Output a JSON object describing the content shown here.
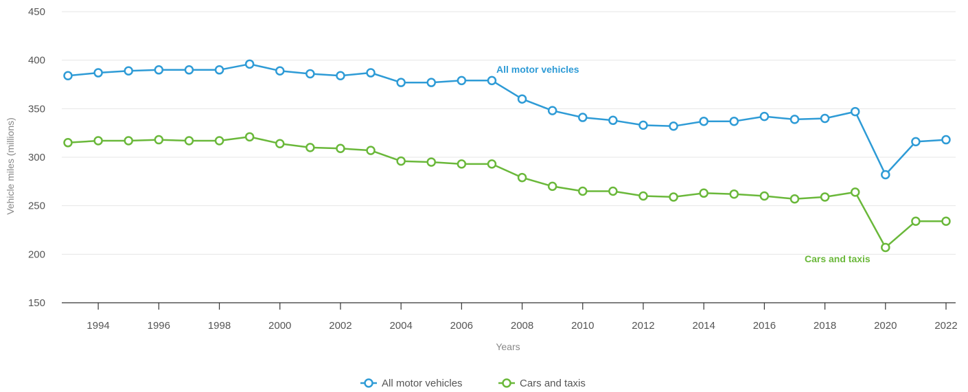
{
  "chart_data": {
    "type": "line",
    "xlabel": "Years",
    "ylabel": "Vehicle miles (millions)",
    "xlim": [
      1993,
      2022
    ],
    "ylim": [
      150,
      450
    ],
    "y_ticks": [
      150,
      200,
      250,
      300,
      350,
      400,
      450
    ],
    "x_ticks": [
      1994,
      1996,
      1998,
      2000,
      2002,
      2004,
      2006,
      2008,
      2010,
      2012,
      2014,
      2016,
      2018,
      2020,
      2022
    ],
    "grid": "horizontal",
    "legend": "bottom-center",
    "x": [
      1993,
      1994,
      1995,
      1996,
      1997,
      1998,
      1999,
      2000,
      2001,
      2002,
      2003,
      2004,
      2005,
      2006,
      2007,
      2008,
      2009,
      2010,
      2011,
      2012,
      2013,
      2014,
      2015,
      2016,
      2017,
      2018,
      2019,
      2020,
      2021,
      2022
    ],
    "series": [
      {
        "name": "All motor vehicles",
        "color": "#2e9bd6",
        "annotation": "All motor vehicles",
        "values": [
          384,
          387,
          389,
          390,
          390,
          390,
          396,
          389,
          386,
          384,
          387,
          377,
          377,
          379,
          379,
          360,
          348,
          341,
          338,
          333,
          332,
          337,
          337,
          342,
          339,
          340,
          347,
          282,
          316,
          318
        ]
      },
      {
        "name": "Cars and taxis",
        "color": "#6ab83a",
        "annotation": "Cars and taxis",
        "values": [
          315,
          317,
          317,
          318,
          317,
          317,
          321,
          314,
          310,
          309,
          307,
          296,
          295,
          293,
          293,
          279,
          270,
          265,
          265,
          260,
          259,
          263,
          262,
          260,
          257,
          259,
          264,
          207,
          234,
          234
        ]
      }
    ]
  }
}
